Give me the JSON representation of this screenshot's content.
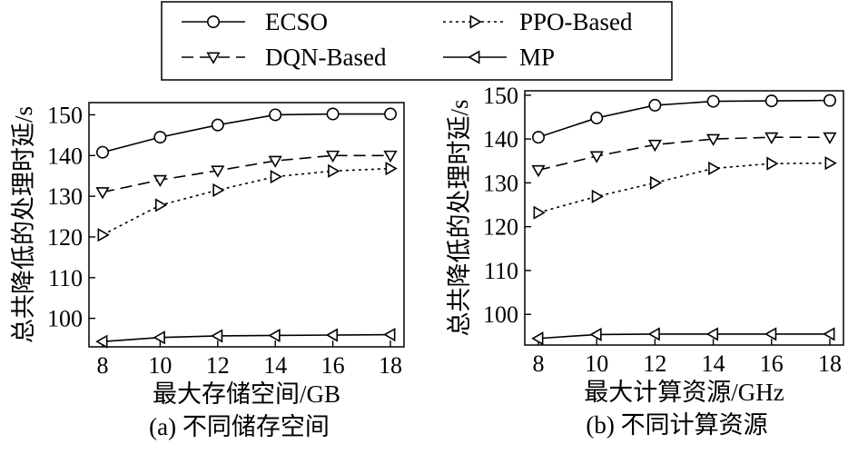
{
  "legend": {
    "entries": [
      {
        "label": "ECSO",
        "marker": "circle",
        "dash": "solid"
      },
      {
        "label": "DQN-Based",
        "marker": "triangle-down",
        "dash": "dashed"
      },
      {
        "label": "PPO-Based",
        "marker": "triangle-right",
        "dash": "dotted"
      },
      {
        "label": "MP",
        "marker": "triangle-left",
        "dash": "solid"
      }
    ]
  },
  "chart_data": [
    {
      "type": "line",
      "caption": "(a) 不同储存空间",
      "xlabel": "最大存储空间/GB",
      "ylabel": "总共降低的处理时延/s",
      "x": [
        8,
        10,
        12,
        14,
        16,
        18
      ],
      "xlim": [
        8,
        18
      ],
      "ylim": [
        93,
        153
      ],
      "yticks": [
        100,
        110,
        120,
        130,
        140,
        150
      ],
      "grid": false,
      "series": [
        {
          "name": "ECSO",
          "values": [
            140.8,
            144.5,
            147.5,
            150.0,
            150.2,
            150.2
          ]
        },
        {
          "name": "DQN-Based",
          "values": [
            131.0,
            134.0,
            136.3,
            138.7,
            140.0,
            140.0
          ]
        },
        {
          "name": "PPO-Based",
          "values": [
            120.5,
            127.8,
            131.5,
            134.8,
            136.2,
            136.8
          ]
        },
        {
          "name": "MP",
          "values": [
            94.3,
            95.3,
            95.7,
            95.8,
            95.9,
            96.0
          ]
        }
      ]
    },
    {
      "type": "line",
      "caption": "(b) 不同计算资源",
      "xlabel": "最大计算资源/GHz",
      "ylabel": "总共降低的处理时延/s",
      "x": [
        8,
        10,
        12,
        14,
        16,
        18
      ],
      "xlim": [
        8,
        18
      ],
      "ylim": [
        93,
        151
      ],
      "yticks": [
        100,
        110,
        120,
        130,
        140,
        150
      ],
      "grid": false,
      "series": [
        {
          "name": "ECSO",
          "values": [
            140.4,
            144.8,
            147.7,
            148.6,
            148.7,
            148.8
          ]
        },
        {
          "name": "DQN-Based",
          "values": [
            132.9,
            136.1,
            138.7,
            140.0,
            140.4,
            140.4
          ]
        },
        {
          "name": "PPO-Based",
          "values": [
            123.2,
            126.9,
            130.0,
            133.3,
            134.4,
            134.5
          ]
        },
        {
          "name": "MP",
          "values": [
            94.5,
            95.4,
            95.5,
            95.5,
            95.5,
            95.5
          ]
        }
      ]
    }
  ]
}
